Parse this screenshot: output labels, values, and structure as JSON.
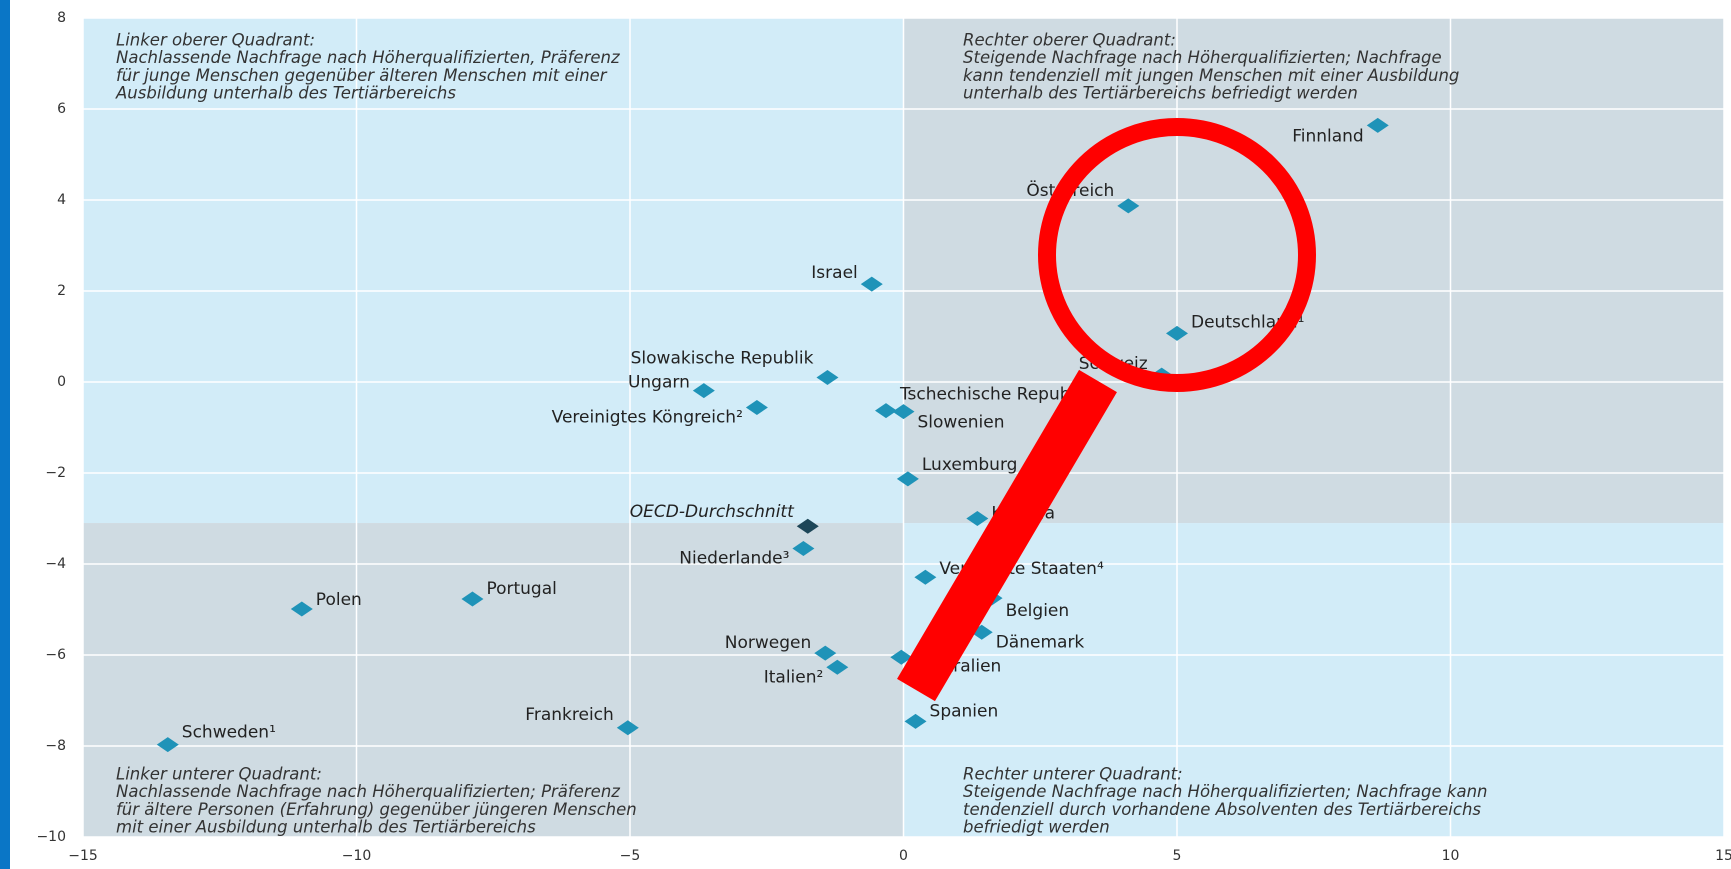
{
  "chart_data": {
    "type": "scatter",
    "xlim": [
      -15,
      15
    ],
    "ylim": [
      -10,
      8
    ],
    "xticks": [
      {
        "value": -15,
        "label": "−15"
      },
      {
        "value": -10,
        "label": "−10"
      },
      {
        "value": -5,
        "label": "−5"
      },
      0,
      5,
      10,
      15
    ],
    "yticks": [
      {
        "value": -10,
        "label": "−10"
      },
      {
        "value": -8,
        "label": "−8"
      },
      {
        "value": -6,
        "label": "−6"
      },
      {
        "value": -4,
        "label": "−4"
      },
      {
        "value": -2,
        "label": "−2"
      },
      0,
      2,
      4,
      6,
      8
    ],
    "grid": true,
    "quadrant_split": {
      "x": 0,
      "y": -3.1
    },
    "color": "#1f93b8",
    "points": [
      {
        "label": "Finnland",
        "x": 8.67,
        "y": 5.64
      },
      {
        "label": "Österreich",
        "x": 4.11,
        "y": 3.87
      },
      {
        "label": "Israel",
        "x": -0.58,
        "y": 2.15
      },
      {
        "label": "Deutschland¹",
        "x": 5.0,
        "y": 1.07
      },
      {
        "label": "Schweiz",
        "x": 4.72,
        "y": 0.15
      },
      {
        "label": "Slowakische Republik",
        "x": -1.39,
        "y": 0.1
      },
      {
        "label": "Ungarn",
        "x": -3.65,
        "y": -0.19
      },
      {
        "label": "Vereinigtes Köngreich²",
        "x": -2.68,
        "y": -0.56
      },
      {
        "label": "Tschechische Republik",
        "x": -0.32,
        "y": -0.63
      },
      {
        "label": "Slowenien",
        "x": 0.0,
        "y": -0.65
      },
      {
        "label": "Luxemburg",
        "x": 0.08,
        "y": -2.13
      },
      {
        "label": "Kanada",
        "x": 1.35,
        "y": -3.0
      },
      {
        "label": "OECD-Durchschnitt",
        "x": -1.75,
        "y": -3.17,
        "color": "#1d4658"
      },
      {
        "label": "Niederlande³",
        "x": -1.83,
        "y": -3.66
      },
      {
        "label": "Vereinigte Staaten⁴",
        "x": 0.4,
        "y": -4.29
      },
      {
        "label": "Belgien",
        "x": 1.61,
        "y": -4.75
      },
      {
        "label": "Dänemark",
        "x": 1.43,
        "y": -5.5
      },
      {
        "label": "Polen",
        "x": -11.0,
        "y": -4.99
      },
      {
        "label": "Portugal",
        "x": -7.88,
        "y": -4.77
      },
      {
        "label": "Norwegen",
        "x": -1.43,
        "y": -5.96
      },
      {
        "label": "Italien²",
        "x": -1.21,
        "y": -6.27
      },
      {
        "label": "Australien",
        "x": -0.04,
        "y": -6.05
      },
      {
        "label": "Frankreich",
        "x": -5.04,
        "y": -7.6
      },
      {
        "label": "Spanien",
        "x": 0.22,
        "y": -7.46
      },
      {
        "label": "Schweden¹",
        "x": -13.45,
        "y": -7.97
      }
    ],
    "annotations": [
      {
        "title": "Linker oberer Quadrant:",
        "lines": [
          "Nachlassende Nachfrage nach Höherqualifizierten, Präferenz",
          "für junge Menschen gegenüber älteren Menschen mit einer",
          "Ausbildung unterhalb des Tertiärbereichs"
        ]
      },
      {
        "title": "Rechter oberer Quadrant:",
        "lines": [
          "Steigende Nachfrage nach Höherqualifizierten; Nachfrage",
          "kann tendenziell mit jungen Menschen mit einer Ausbildung",
          "unterhalb des Tertiärbereichs befriedigt werden"
        ]
      },
      {
        "title": "Linker unterer Quadrant:",
        "lines": [
          "Nachlassende Nachfrage nach Höherqualifizierten; Präferenz",
          "für ältere Personen (Erfahrung) gegenüber jüngeren Menschen",
          "mit einer Ausbildung unterhalb des Tertiärbereichs"
        ]
      },
      {
        "title": "Rechter unterer Quadrant:",
        "lines": [
          "Steigende Nachfrage nach Höherqualifizierten; Nachfrage kann",
          "tendenziell durch vorhandene Absolventen des Tertiärbereichs",
          "befriedigt werden"
        ]
      }
    ]
  }
}
